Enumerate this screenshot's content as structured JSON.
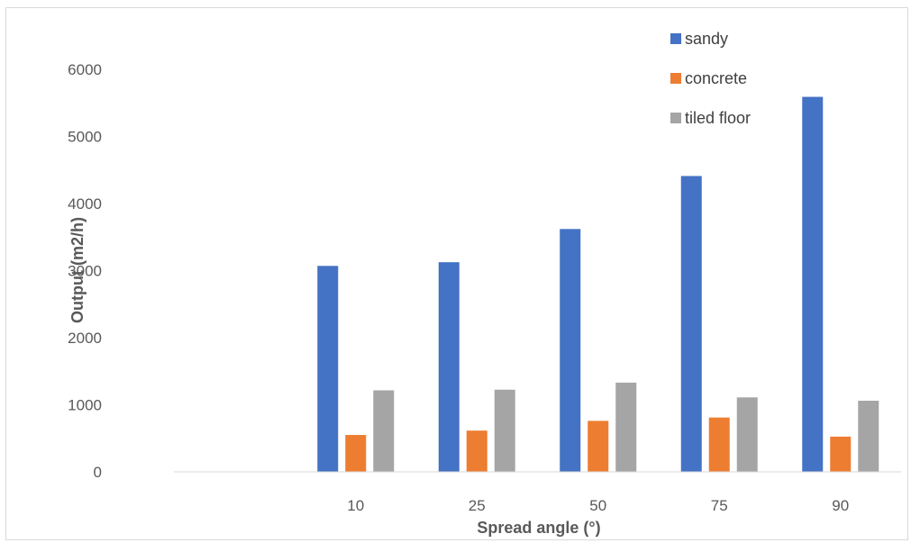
{
  "chart_data": {
    "type": "bar",
    "title": "",
    "xlabel": "Spread angle (°)",
    "ylabel": "Output (m2/h)",
    "categories": [
      "",
      "10",
      "25",
      "50",
      "75",
      "90"
    ],
    "series": [
      {
        "name": "sandy",
        "color": "#4472c4",
        "values": [
          null,
          3070,
          3125,
          3620,
          4410,
          5590
        ]
      },
      {
        "name": "concrete",
        "color": "#ed7d31",
        "values": [
          null,
          550,
          615,
          760,
          810,
          525
        ]
      },
      {
        "name": "tiled floor",
        "color": "#a5a5a5",
        "values": [
          null,
          1215,
          1225,
          1330,
          1110,
          1060
        ]
      }
    ],
    "ylim": [
      0,
      6000
    ],
    "yticks": [
      0,
      1000,
      2000,
      3000,
      4000,
      5000,
      6000
    ],
    "grid": false,
    "legend_position": "top-right"
  }
}
